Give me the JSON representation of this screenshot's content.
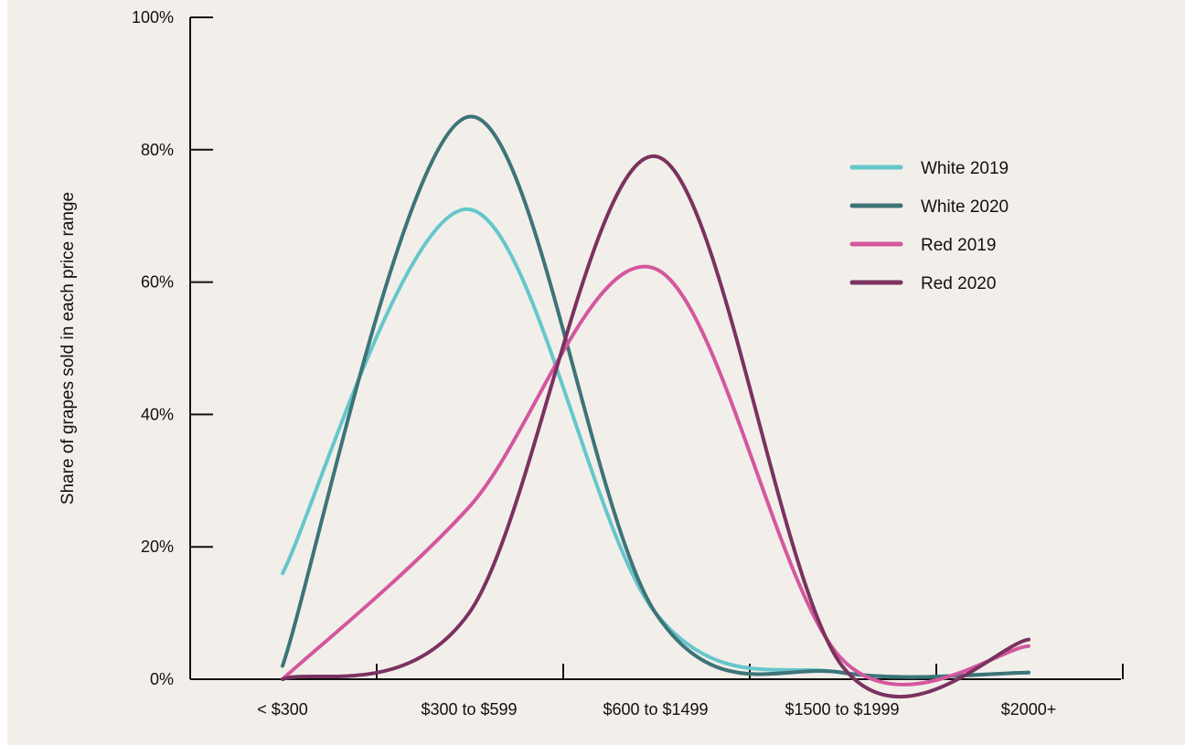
{
  "chart_data": {
    "type": "line",
    "ylabel": "Share of grapes sold in each price range",
    "xlabel": "",
    "categories": [
      "< $300",
      "$300 to $599",
      "$600 to $1499",
      "$1500 to $1999",
      "$2000+"
    ],
    "y_ticks": [
      "0%",
      "20%",
      "40%",
      "60%",
      "80%",
      "100%"
    ],
    "ylim": [
      0,
      100
    ],
    "grid": false,
    "legend_position": "top-right",
    "series": [
      {
        "name": "White 2019",
        "color": "#66c6cb",
        "values": [
          16,
          71,
          10,
          1,
          1
        ]
      },
      {
        "name": "White 2020",
        "color": "#3d7478",
        "values": [
          2,
          85,
          10,
          1,
          1
        ]
      },
      {
        "name": "Red 2019",
        "color": "#d4579e",
        "values": [
          0,
          26,
          62,
          3,
          5
        ]
      },
      {
        "name": "Red 2020",
        "color": "#7b3260",
        "values": [
          0,
          10,
          79,
          2,
          6
        ]
      }
    ]
  }
}
